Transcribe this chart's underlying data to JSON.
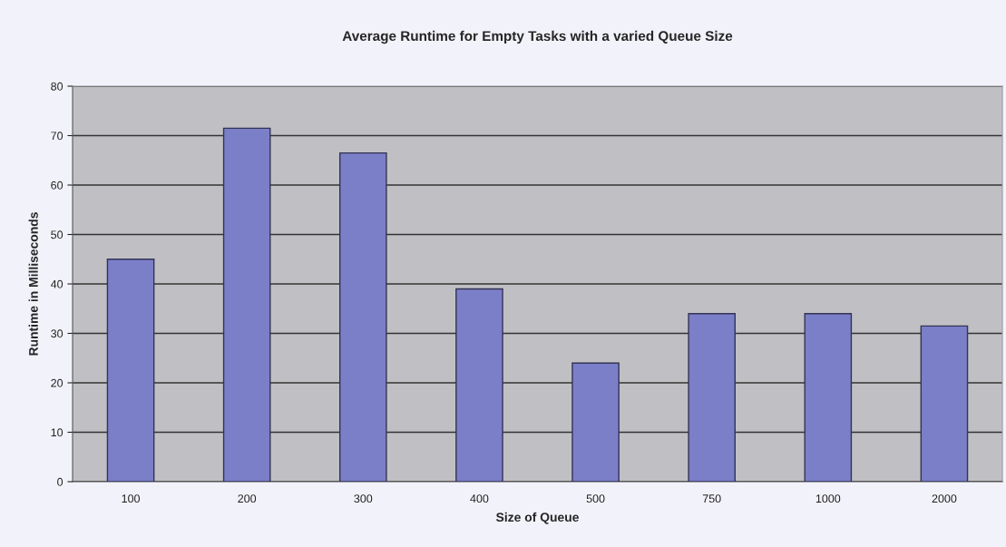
{
  "chart_data": {
    "type": "bar",
    "title": "Average Runtime for Empty Tasks with a varied Queue Size",
    "xlabel": "Size of Queue",
    "ylabel": "Runtime in Milliseconds",
    "categories": [
      "100",
      "200",
      "300",
      "400",
      "500",
      "750",
      "1000",
      "2000"
    ],
    "values": [
      45,
      71.5,
      66.5,
      39,
      24,
      34,
      34,
      31.5
    ],
    "color": "#7b7fc8",
    "ylim": [
      0,
      80
    ],
    "yticks": [
      0,
      10,
      20,
      30,
      40,
      50,
      60,
      70,
      80
    ],
    "grid": "y",
    "legend": false
  }
}
